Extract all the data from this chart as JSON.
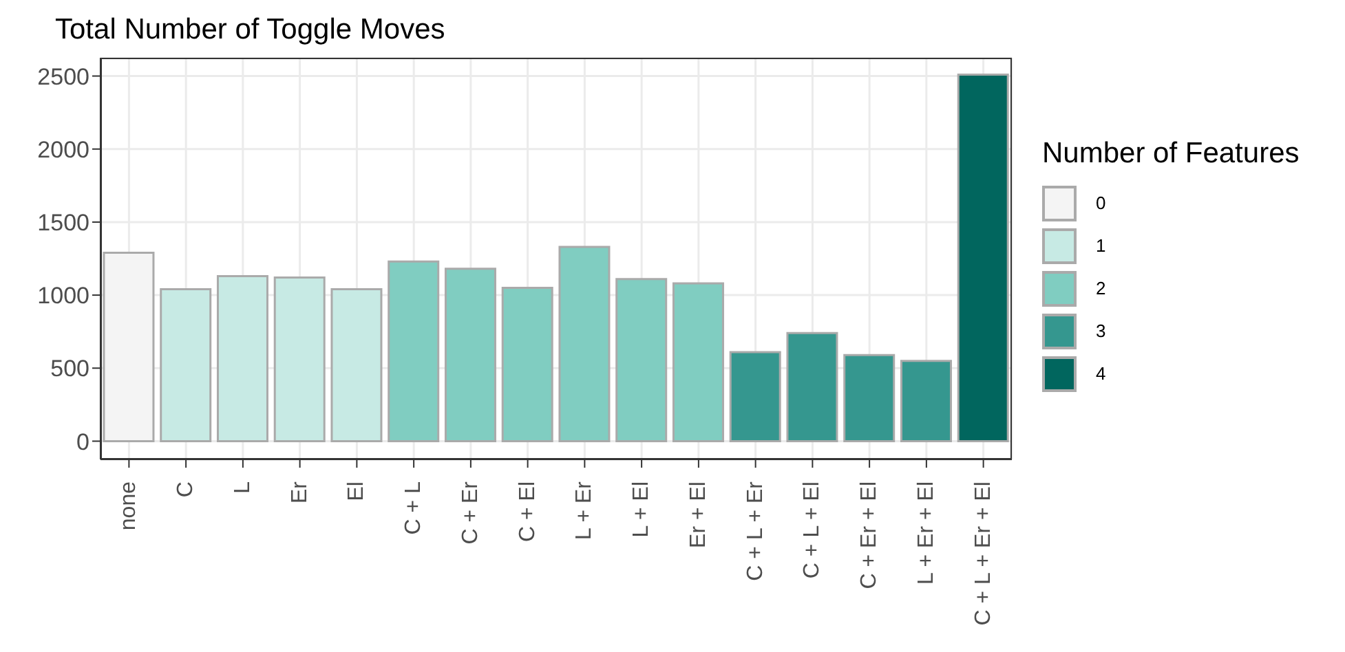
{
  "chart_data": {
    "type": "bar",
    "title": "Total Number of Toggle Moves",
    "legend_title": "Number of Features",
    "categories": [
      "none",
      "C",
      "L",
      "Er",
      "El",
      "C + L",
      "C + Er",
      "C + El",
      "L + Er",
      "L + El",
      "Er + El",
      "C + L + Er",
      "C + L + El",
      "C + Er + El",
      "L + Er + El",
      "C + L + Er + El"
    ],
    "stacked": true,
    "series": [
      {
        "name": "0",
        "color": "#f4f4f4",
        "values": [
          1290,
          null,
          null,
          null,
          null,
          null,
          null,
          null,
          null,
          null,
          null,
          null,
          null,
          null,
          null,
          null
        ]
      },
      {
        "name": "1",
        "color": "#c7eae4",
        "values": [
          null,
          1040,
          1130,
          1120,
          1040,
          null,
          null,
          null,
          null,
          null,
          null,
          null,
          null,
          null,
          null,
          null
        ]
      },
      {
        "name": "2",
        "color": "#80cdc1",
        "values": [
          null,
          null,
          null,
          null,
          null,
          1230,
          1180,
          1050,
          1330,
          1110,
          1080,
          null,
          null,
          null,
          null,
          null
        ]
      },
      {
        "name": "3",
        "color": "#35978f",
        "values": [
          null,
          null,
          null,
          null,
          null,
          null,
          null,
          null,
          null,
          null,
          null,
          610,
          740,
          590,
          550,
          null
        ]
      },
      {
        "name": "4",
        "color": "#01665e",
        "values": [
          null,
          null,
          null,
          null,
          null,
          null,
          null,
          null,
          null,
          null,
          null,
          null,
          null,
          null,
          null,
          2510
        ]
      }
    ],
    "ylim": [
      -125,
      2625
    ],
    "yticks": [
      0,
      500,
      1000,
      1500,
      2000,
      2500
    ],
    "grid": true,
    "legend": "right"
  }
}
